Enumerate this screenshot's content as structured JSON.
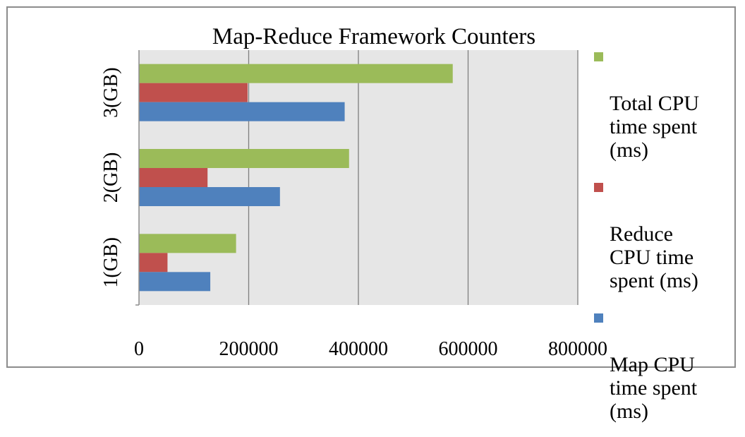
{
  "chart_data": {
    "type": "bar",
    "orientation": "horizontal",
    "title": "Map-Reduce Framework Counters",
    "categories": [
      "1(GB)",
      "2(GB)",
      "3(GB)"
    ],
    "series": [
      {
        "name": "Map CPU time spent (ms)",
        "color": "#4f81bd",
        "values": [
          130000,
          257000,
          375000
        ]
      },
      {
        "name": "Reduce CPU time spent (ms)",
        "color": "#c0504d",
        "values": [
          52000,
          125000,
          198000
        ]
      },
      {
        "name": "Total CPU time spent (ms)",
        "color": "#9bbb59",
        "values": [
          177000,
          383000,
          572000
        ]
      }
    ],
    "xlim": [
      0,
      800000
    ],
    "xticks": [
      0,
      200000,
      400000,
      600000,
      800000
    ],
    "xtick_labels": [
      "0",
      "200000",
      "400000",
      "600000",
      "800000"
    ],
    "grid": true,
    "plot_background": "#e6e6e6",
    "legend_position": "right",
    "legend": [
      {
        "label": "Total CPU\ntime spent\n(ms)",
        "color": "#9bbb59"
      },
      {
        "label": "Reduce\nCPU time\nspent (ms)",
        "color": "#c0504d"
      },
      {
        "label": "Map CPU\ntime spent\n(ms)",
        "color": "#4f81bd"
      }
    ]
  }
}
